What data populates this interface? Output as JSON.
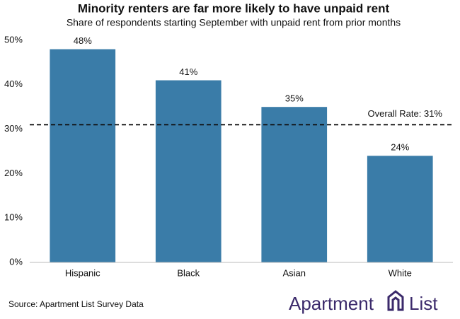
{
  "chart_data": {
    "type": "bar",
    "title": "Minority renters are far more likely to have unpaid  rent",
    "subtitle": "Share of respondents starting September with unpaid rent from prior months",
    "categories": [
      "Hispanic",
      "Black",
      "Asian",
      "White"
    ],
    "values": [
      48,
      41,
      35,
      24
    ],
    "value_labels": [
      "48%",
      "41%",
      "35%",
      "24%"
    ],
    "color": "#3a7ca8",
    "ylim": [
      0,
      50
    ],
    "yticks": [
      {
        "value": 0,
        "label": "0%"
      },
      {
        "value": 10,
        "label": "10%"
      },
      {
        "value": 20,
        "label": "20%"
      },
      {
        "value": 30,
        "label": "30%"
      },
      {
        "value": 40,
        "label": "40%"
      },
      {
        "value": 50,
        "label": "50%"
      }
    ],
    "grid": false,
    "reference_line": {
      "value": 31,
      "label": "Overall Rate: 31%"
    },
    "source": "Source: Apartment List Survey Data",
    "logo": [
      "Apartment",
      "List"
    ]
  }
}
